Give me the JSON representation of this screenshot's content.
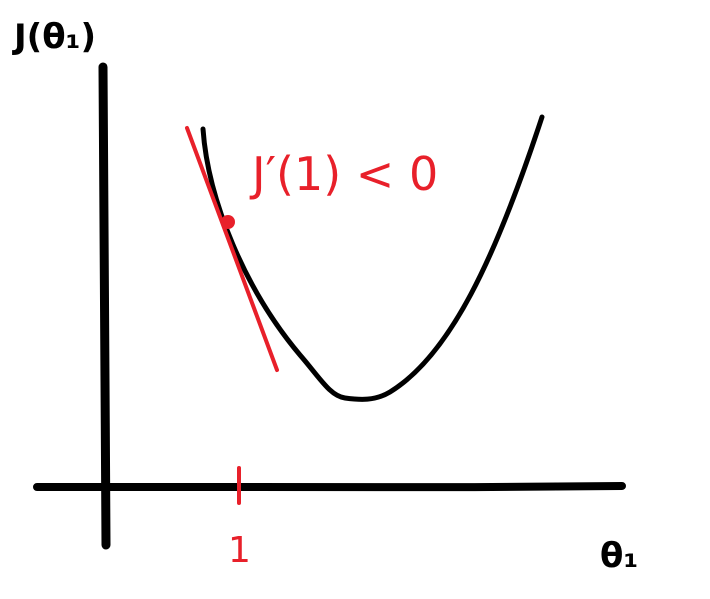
{
  "colors": {
    "ink": "#000000",
    "accent": "#e8202a",
    "background": "#ffffff"
  },
  "labels": {
    "y_axis": "J(θ₁)",
    "x_axis": "θ₁",
    "derivative": "J′(1) < 0",
    "x_tick": "1"
  }
}
